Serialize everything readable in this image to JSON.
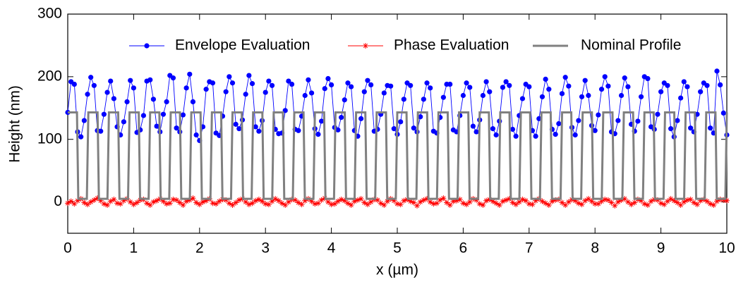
{
  "chart_data": {
    "type": "line",
    "xlabel": "x  (µm)",
    "ylabel": "Height  (nm)",
    "xlim": [
      0,
      10
    ],
    "ylim": [
      -50,
      300
    ],
    "xticks": [
      0,
      1,
      2,
      3,
      4,
      5,
      6,
      7,
      8,
      9,
      10
    ],
    "yticks": [
      0,
      100,
      200,
      300
    ],
    "legend": "upper center",
    "x": [
      0,
      0.05,
      0.1,
      0.15,
      0.2,
      0.25,
      0.3,
      0.35,
      0.4,
      0.45,
      0.5,
      0.55,
      0.6,
      0.65,
      0.7,
      0.75,
      0.8,
      0.85,
      0.9,
      0.95,
      1,
      1.05,
      1.1,
      1.15,
      1.2,
      1.25,
      1.3,
      1.35,
      1.4,
      1.45,
      1.5,
      1.55,
      1.6,
      1.65,
      1.7,
      1.75,
      1.8,
      1.85,
      1.9,
      1.95,
      2,
      2.05,
      2.1,
      2.15,
      2.2,
      2.25,
      2.3,
      2.35,
      2.4,
      2.45,
      2.5,
      2.55,
      2.6,
      2.65,
      2.7,
      2.75,
      2.8,
      2.85,
      2.9,
      2.95,
      3,
      3.05,
      3.1,
      3.15,
      3.2,
      3.25,
      3.3,
      3.35,
      3.4,
      3.45,
      3.5,
      3.55,
      3.6,
      3.65,
      3.7,
      3.75,
      3.8,
      3.85,
      3.9,
      3.95,
      4,
      4.05,
      4.1,
      4.15,
      4.2,
      4.25,
      4.3,
      4.35,
      4.4,
      4.45,
      4.5,
      4.55,
      4.6,
      4.65,
      4.7,
      4.75,
      4.8,
      4.85,
      4.9,
      4.95,
      5,
      5.05,
      5.1,
      5.15,
      5.2,
      5.25,
      5.3,
      5.35,
      5.4,
      5.45,
      5.5,
      5.55,
      5.6,
      5.65,
      5.7,
      5.75,
      5.8,
      5.85,
      5.9,
      5.95,
      6,
      6.05,
      6.1,
      6.15,
      6.2,
      6.25,
      6.3,
      6.35,
      6.4,
      6.45,
      6.5,
      6.55,
      6.6,
      6.65,
      6.7,
      6.75,
      6.8,
      6.85,
      6.9,
      6.95,
      7,
      7.05,
      7.1,
      7.15,
      7.2,
      7.25,
      7.3,
      7.35,
      7.4,
      7.45,
      7.5,
      7.55,
      7.6,
      7.65,
      7.7,
      7.75,
      7.8,
      7.85,
      7.9,
      7.95,
      8,
      8.05,
      8.1,
      8.15,
      8.2,
      8.25,
      8.3,
      8.35,
      8.4,
      8.45,
      8.5,
      8.55,
      8.6,
      8.65,
      8.7,
      8.75,
      8.8,
      8.85,
      8.9,
      8.95,
      9,
      9.05,
      9.1,
      9.15,
      9.2,
      9.25,
      9.3,
      9.35,
      9.4,
      9.45,
      9.5,
      9.55,
      9.6,
      9.65,
      9.7,
      9.75,
      9.8,
      9.85,
      9.9,
      9.95,
      10
    ],
    "series": [
      {
        "name": "Envelope Evaluation",
        "color": "#0000ff",
        "marker": "circle",
        "values": [
          143,
          192,
          188,
          112,
          104,
          130,
          172,
          199,
          186,
          114,
          113,
          140,
          175,
          193,
          165,
          120,
          107,
          128,
          160,
          194,
          182,
          111,
          115,
          138,
          193,
          195,
          164,
          121,
          112,
          140,
          160,
          202,
          198,
          118,
          112,
          139,
          182,
          204,
          160,
          107,
          98,
          120,
          180,
          192,
          190,
          110,
          106,
          137,
          176,
          200,
          190,
          124,
          117,
          131,
          172,
          202,
          189,
          120,
          113,
          130,
          175,
          193,
          186,
          116,
          109,
          110,
          146,
          193,
          188,
          116,
          114,
          137,
          170,
          195,
          174,
          117,
          108,
          129,
          181,
          197,
          187,
          119,
          115,
          135,
          163,
          190,
          184,
          114,
          105,
          133,
          176,
          194,
          187,
          113,
          116,
          140,
          174,
          186,
          185,
          117,
          108,
          128,
          164,
          190,
          186,
          118,
          112,
          136,
          164,
          190,
          182,
          113,
          110,
          135,
          167,
          188,
          188,
          115,
          112,
          138,
          170,
          190,
          183,
          121,
          112,
          131,
          170,
          192,
          176,
          117,
          107,
          129,
          183,
          192,
          186,
          116,
          105,
          138,
          165,
          188,
          184,
          114,
          105,
          133,
          168,
          196,
          180,
          116,
          108,
          125,
          173,
          199,
          185,
          119,
          107,
          130,
          168,
          194,
          170,
          122,
          114,
          139,
          180,
          200,
          185,
          112,
          109,
          130,
          170,
          198,
          184,
          124,
          113,
          129,
          168,
          200,
          197,
          120,
          116,
          140,
          176,
          190,
          186,
          117,
          104,
          130,
          166,
          192,
          184,
          118,
          112,
          140,
          176,
          190,
          186,
          118,
          110,
          209,
          187,
          142,
          107
        ]
      },
      {
        "name": "Phase Evaluation",
        "color": "#ff0000",
        "marker": "asterisk",
        "values": [
          -2,
          1,
          -3,
          2,
          5,
          -1,
          -4,
          0,
          3,
          6,
          2,
          -3,
          -5,
          1,
          4,
          -2,
          -3,
          2,
          5,
          0,
          -4,
          -1,
          3,
          4,
          -2,
          -5,
          0,
          2,
          5,
          1,
          -3,
          -2,
          4,
          3,
          -1,
          -5,
          1,
          3,
          6,
          -1,
          -4,
          0,
          2,
          5,
          -2,
          -3,
          1,
          4,
          3,
          -2,
          -5,
          -1,
          3,
          5,
          0,
          -4,
          -2,
          2,
          4,
          1,
          -3,
          -4,
          1,
          5,
          2,
          -2,
          -5,
          0,
          4,
          3,
          -1,
          -4,
          2,
          5,
          1,
          -3,
          -2,
          3,
          6,
          0,
          -4,
          -3,
          1,
          4,
          2,
          -2,
          -5,
          1,
          3,
          5,
          -1,
          -4,
          0,
          4,
          3,
          -2,
          -5,
          1,
          5,
          2,
          -3,
          -4,
          2,
          4,
          1,
          -1,
          -6,
          0,
          3,
          5,
          0,
          -3,
          -2,
          3,
          6,
          -1,
          -5,
          1,
          2,
          4,
          -2,
          -4,
          0,
          5,
          3,
          -3,
          -5,
          2,
          4,
          1,
          -2,
          -5,
          1,
          3,
          5,
          -1,
          -4,
          0,
          4,
          2,
          -3,
          -4,
          2,
          5,
          1,
          -2,
          -5,
          1,
          3,
          4,
          -1,
          -5,
          0,
          4,
          2,
          -2,
          -4,
          2,
          5,
          1,
          -3,
          -3,
          1,
          4,
          3,
          -1,
          -6,
          0,
          3,
          5,
          0,
          -4,
          -1,
          4,
          2,
          -3,
          -5,
          1,
          4,
          3,
          -2,
          -4,
          1,
          5,
          2,
          -1,
          -5,
          0,
          3,
          4,
          -1,
          -4,
          2,
          4,
          1,
          -3,
          -5,
          1,
          4,
          3,
          2
        ]
      },
      {
        "name": "Nominal Profile",
        "color": "#808080",
        "marker": "none",
        "x": [
          0,
          0.14,
          0.16,
          0.29,
          0.3125,
          0.4525,
          0.4725,
          0.6025,
          0.625,
          0.765,
          0.785,
          0.915,
          0.9375,
          1.0775,
          1.0975,
          1.2275,
          1.25,
          1.39,
          1.41,
          1.54,
          1.5625,
          1.7025,
          1.7225,
          1.8525,
          1.875,
          2.015,
          2.035,
          2.165,
          2.1875,
          2.3275,
          2.3475,
          2.4775,
          2.5,
          2.64,
          2.66,
          2.79,
          2.8125,
          2.9525,
          2.9725,
          3.1025,
          3.125,
          3.265,
          3.285,
          3.415,
          3.4375,
          3.5775,
          3.5975,
          3.7275,
          3.75,
          3.89,
          3.91,
          4.04,
          4.0625,
          4.2025,
          4.2225,
          4.3525,
          4.375,
          4.515,
          4.535,
          4.665,
          4.6875,
          4.8275,
          4.8475,
          4.9775,
          5,
          5.14,
          5.16,
          5.29,
          5.3125,
          5.4525,
          5.4725,
          5.6025,
          5.625,
          5.765,
          5.785,
          5.915,
          5.9375,
          6.0775,
          6.0975,
          6.2275,
          6.25,
          6.39,
          6.41,
          6.54,
          6.5625,
          6.7025,
          6.7225,
          6.8525,
          6.875,
          7.015,
          7.035,
          7.165,
          7.1875,
          7.3275,
          7.3475,
          7.4775,
          7.5,
          7.64,
          7.66,
          7.79,
          7.8125,
          7.9525,
          7.9725,
          8.1025,
          8.125,
          8.265,
          8.285,
          8.415,
          8.4375,
          8.5775,
          8.5975,
          8.7275,
          8.75,
          8.89,
          8.91,
          9.04,
          9.0625,
          9.2025,
          9.2225,
          9.3525,
          9.375,
          9.515,
          9.535,
          9.665,
          9.6875,
          9.8275,
          9.8475,
          9.9775,
          10
        ],
        "values": [
          143,
          143,
          5,
          5,
          143,
          143,
          5,
          5,
          143,
          143,
          5,
          5,
          143,
          143,
          5,
          5,
          143,
          143,
          5,
          5,
          143,
          143,
          5,
          5,
          143,
          143,
          5,
          5,
          143,
          143,
          5,
          5,
          143,
          143,
          5,
          5,
          143,
          143,
          5,
          5,
          143,
          143,
          5,
          5,
          143,
          143,
          5,
          5,
          143,
          143,
          5,
          5,
          143,
          143,
          5,
          5,
          143,
          143,
          5,
          5,
          143,
          143,
          5,
          5,
          143,
          143,
          5,
          5,
          143,
          143,
          5,
          5,
          143,
          143,
          5,
          5,
          143,
          143,
          5,
          5,
          143,
          143,
          5,
          5,
          143,
          143,
          5,
          5,
          143,
          143,
          5,
          5,
          143,
          143,
          5,
          5,
          143,
          143,
          5,
          5,
          143,
          143,
          5,
          5,
          143,
          143,
          5,
          5,
          143,
          143,
          5,
          5,
          143,
          143,
          5,
          5,
          143,
          143,
          5,
          5,
          143,
          143,
          5,
          5,
          143,
          143,
          5,
          5,
          143
        ]
      }
    ]
  }
}
